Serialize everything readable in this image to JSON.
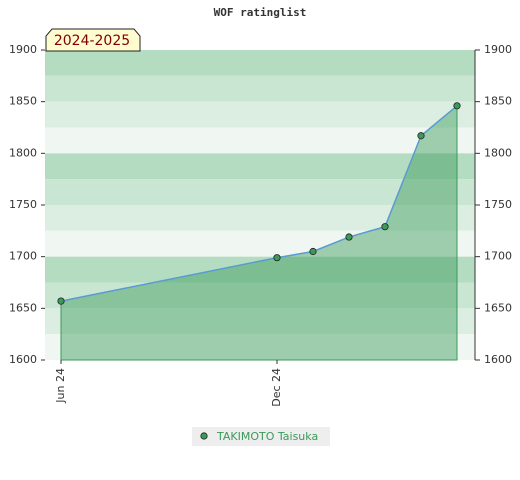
{
  "chart_data": {
    "type": "area",
    "title": "WOF ratinglist",
    "badge": "2024-2025",
    "x": [
      "2024-06",
      "2024-12",
      "2025-01",
      "2025-02",
      "2025-03",
      "2025-04",
      "2025-05"
    ],
    "xticks": [
      {
        "value": "2024-06",
        "label": "Jun 24"
      },
      {
        "value": "2024-12",
        "label": "Dec 24"
      }
    ],
    "series": [
      {
        "name": "TAKIMOTO Taisuka",
        "color": "#3a9a5a",
        "line_color": "#5b9bd5",
        "values": [
          1657,
          1699,
          1705,
          1719,
          1729,
          1817,
          1846
        ]
      }
    ],
    "ylim": [
      1600,
      1900
    ],
    "yticks": [
      1600,
      1650,
      1700,
      1750,
      1800,
      1850,
      1900
    ],
    "y2lim": [
      1600,
      1900
    ],
    "y2ticks": [
      1600,
      1650,
      1700,
      1750,
      1800,
      1850,
      1900
    ],
    "grid": true,
    "legend": "bottom"
  }
}
